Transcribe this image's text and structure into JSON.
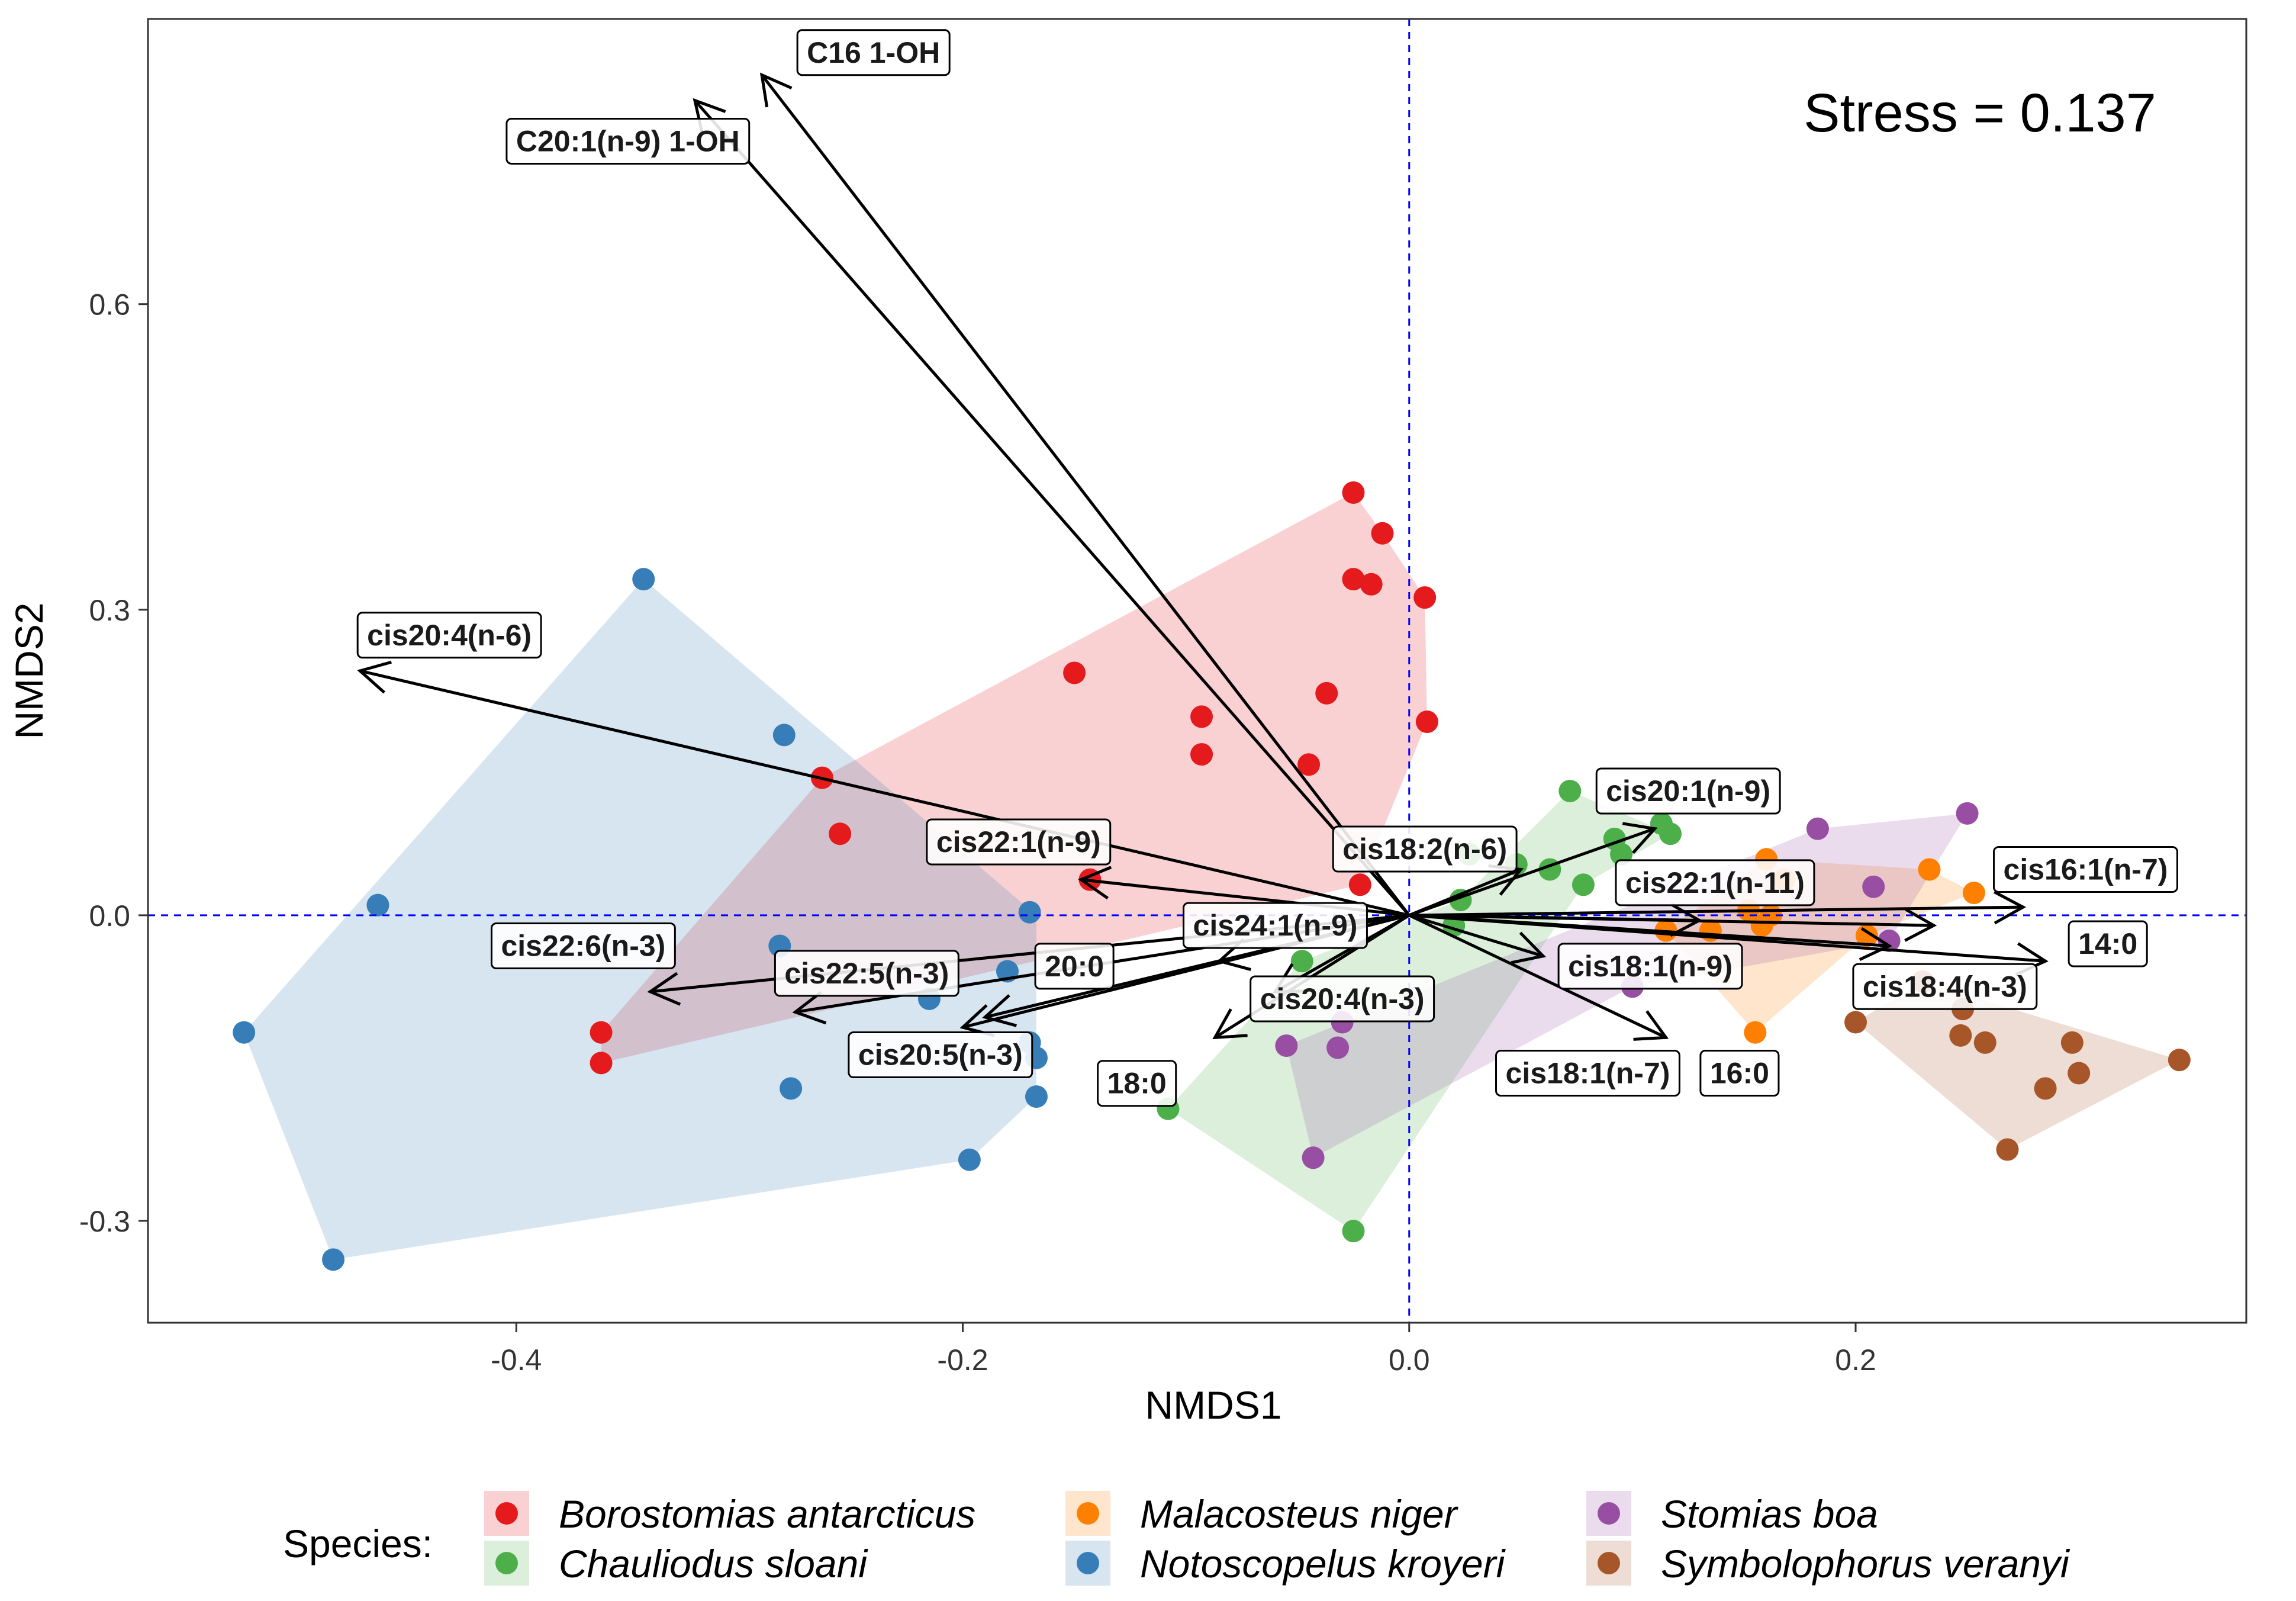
{
  "chart_data": {
    "type": "scatter",
    "subtype": "NMDS ordination with species hulls and fatty-acid vectors",
    "xlabel": "NMDS1",
    "ylabel": "NMDS2",
    "xlim": [
      -0.565,
      0.375
    ],
    "ylim": [
      -0.4,
      0.88
    ],
    "x_ticks": [
      -0.4,
      -0.2,
      0.0,
      0.2
    ],
    "x_tick_labels": [
      "-0.4",
      "-0.2",
      "0.0",
      "0.2"
    ],
    "y_ticks": [
      -0.3,
      0.0,
      0.3,
      0.6
    ],
    "y_tick_labels": [
      "-0.3",
      "0.0",
      "0.3",
      "0.6"
    ],
    "grid": false,
    "reference_lines": {
      "x": 0.0,
      "y": 0.0,
      "color": "#0000ff",
      "style": "dashed"
    },
    "stress_text": "Stress = 0.137",
    "legend": {
      "title": "Species:",
      "position": "bottom",
      "entries": [
        "Borostomias antarcticus",
        "Chauliodus sloani",
        "Malacosteus niger",
        "Notoscopelus kroyeri",
        "Stomias boa",
        "Symbolophorus veranyi"
      ]
    },
    "series": [
      {
        "name": "Borostomias antarcticus",
        "color": "#e41a1c",
        "points": [
          [
            -0.025,
            0.415
          ],
          [
            -0.012,
            0.375
          ],
          [
            -0.025,
            0.33
          ],
          [
            -0.017,
            0.325
          ],
          [
            0.007,
            0.312
          ],
          [
            -0.15,
            0.238
          ],
          [
            -0.037,
            0.218
          ],
          [
            0.008,
            0.19
          ],
          [
            -0.093,
            0.195
          ],
          [
            -0.093,
            0.158
          ],
          [
            -0.045,
            0.148
          ],
          [
            -0.263,
            0.135
          ],
          [
            -0.255,
            0.08
          ],
          [
            -0.022,
            0.03
          ],
          [
            -0.143,
            0.035
          ],
          [
            -0.362,
            -0.115
          ],
          [
            -0.362,
            -0.145
          ]
        ],
        "hull": [
          [
            -0.025,
            0.415
          ],
          [
            -0.012,
            0.375
          ],
          [
            0.007,
            0.312
          ],
          [
            0.008,
            0.19
          ],
          [
            -0.022,
            0.03
          ],
          [
            -0.362,
            -0.145
          ],
          [
            -0.362,
            -0.115
          ],
          [
            -0.263,
            0.135
          ]
        ]
      },
      {
        "name": "Chauliodus sloani",
        "color": "#4daf4a",
        "points": [
          [
            0.072,
            0.122
          ],
          [
            0.113,
            0.09
          ],
          [
            0.117,
            0.08
          ],
          [
            0.092,
            0.075
          ],
          [
            0.027,
            0.06
          ],
          [
            0.095,
            0.06
          ],
          [
            0.048,
            0.05
          ],
          [
            0.063,
            0.045
          ],
          [
            0.078,
            0.03
          ],
          [
            0.023,
            0.015
          ],
          [
            0.02,
            -0.01
          ],
          [
            -0.048,
            -0.045
          ],
          [
            -0.108,
            -0.19
          ],
          [
            -0.025,
            -0.31
          ]
        ],
        "hull": [
          [
            0.072,
            0.122
          ],
          [
            0.117,
            0.08
          ],
          [
            0.078,
            0.03
          ],
          [
            -0.025,
            -0.31
          ],
          [
            -0.108,
            -0.19
          ],
          [
            -0.048,
            -0.045
          ],
          [
            0.023,
            0.015
          ]
        ]
      },
      {
        "name": "Malacosteus niger",
        "color": "#ff7f00",
        "points": [
          [
            0.233,
            0.045
          ],
          [
            0.253,
            0.022
          ],
          [
            0.16,
            0.055
          ],
          [
            0.168,
            0.035
          ],
          [
            0.152,
            0.005
          ],
          [
            0.205,
            -0.02
          ],
          [
            0.162,
            0.0
          ],
          [
            0.158,
            -0.01
          ],
          [
            0.135,
            -0.015
          ],
          [
            0.115,
            -0.015
          ],
          [
            0.155,
            -0.115
          ]
        ],
        "hull": [
          [
            0.16,
            0.055
          ],
          [
            0.233,
            0.045
          ],
          [
            0.253,
            0.022
          ],
          [
            0.205,
            -0.02
          ],
          [
            0.155,
            -0.115
          ],
          [
            0.115,
            -0.015
          ]
        ]
      },
      {
        "name": "Notoscopelus kroyeri",
        "color": "#377eb8",
        "points": [
          [
            -0.343,
            0.33
          ],
          [
            -0.28,
            0.177
          ],
          [
            -0.462,
            0.01
          ],
          [
            -0.17,
            0.003
          ],
          [
            -0.282,
            -0.03
          ],
          [
            -0.18,
            -0.055
          ],
          [
            -0.215,
            -0.082
          ],
          [
            -0.522,
            -0.115
          ],
          [
            -0.17,
            -0.125
          ],
          [
            -0.167,
            -0.14
          ],
          [
            -0.277,
            -0.17
          ],
          [
            -0.167,
            -0.178
          ],
          [
            -0.197,
            -0.24
          ],
          [
            -0.482,
            -0.338
          ]
        ],
        "hull": [
          [
            -0.343,
            0.33
          ],
          [
            -0.167,
            0.0
          ],
          [
            -0.167,
            -0.178
          ],
          [
            -0.197,
            -0.24
          ],
          [
            -0.482,
            -0.338
          ],
          [
            -0.522,
            -0.115
          ]
        ]
      },
      {
        "name": "Stomias boa",
        "color": "#984ea3",
        "points": [
          [
            0.25,
            0.1
          ],
          [
            0.183,
            0.085
          ],
          [
            0.208,
            0.028
          ],
          [
            0.215,
            -0.025
          ],
          [
            0.1,
            -0.07
          ],
          [
            -0.03,
            -0.105
          ],
          [
            -0.055,
            -0.128
          ],
          [
            -0.032,
            -0.13
          ],
          [
            -0.043,
            -0.238
          ]
        ],
        "hull": [
          [
            0.25,
            0.1
          ],
          [
            0.215,
            -0.025
          ],
          [
            0.1,
            -0.07
          ],
          [
            -0.043,
            -0.238
          ],
          [
            -0.055,
            -0.128
          ],
          [
            0.183,
            0.085
          ]
        ]
      },
      {
        "name": "Symbolophorus veranyi",
        "color": "#a65628",
        "points": [
          [
            0.2,
            -0.105
          ],
          [
            0.248,
            -0.092
          ],
          [
            0.247,
            -0.118
          ],
          [
            0.258,
            -0.125
          ],
          [
            0.297,
            -0.125
          ],
          [
            0.345,
            -0.142
          ],
          [
            0.3,
            -0.155
          ],
          [
            0.285,
            -0.17
          ],
          [
            0.268,
            -0.23
          ],
          [
            0.23,
            -0.065
          ]
        ],
        "hull": [
          [
            0.23,
            -0.065
          ],
          [
            0.345,
            -0.142
          ],
          [
            0.268,
            -0.23
          ],
          [
            0.2,
            -0.105
          ]
        ]
      }
    ],
    "vectors": [
      {
        "label": "C16 1-OH",
        "end": [
          -0.29,
          0.825
        ],
        "label_at": [
          -0.24,
          0.847
        ]
      },
      {
        "label": "C20:1(n-9) 1-OH",
        "end": [
          -0.32,
          0.8
        ],
        "label_at": [
          -0.35,
          0.76
        ]
      },
      {
        "label": "cis20:4(n-6)",
        "end": [
          -0.47,
          0.24
        ],
        "label_at": [
          -0.43,
          0.275
        ]
      },
      {
        "label": "cis22:1(n-9)",
        "end": [
          -0.147,
          0.035
        ],
        "label_at": [
          -0.175,
          0.072
        ]
      },
      {
        "label": "cis22:6(n-3)",
        "end": [
          -0.34,
          -0.075
        ],
        "label_at": [
          -0.37,
          -0.03
        ]
      },
      {
        "label": "cis22:5(n-3)",
        "end": [
          -0.275,
          -0.095
        ],
        "label_at": [
          -0.243,
          -0.057
        ]
      },
      {
        "label": "20:0",
        "end": [
          -0.19,
          -0.1
        ],
        "label_at": [
          -0.15,
          -0.05
        ]
      },
      {
        "label": "cis20:5(n-3)",
        "end": [
          -0.2,
          -0.11
        ],
        "label_at": [
          -0.21,
          -0.137
        ]
      },
      {
        "label": "18:0",
        "end": [
          -0.087,
          -0.12
        ],
        "label_at": [
          -0.122,
          -0.165
        ]
      },
      {
        "label": "cis24:1(n-9)",
        "end": [
          -0.085,
          -0.045
        ],
        "label_at": [
          -0.06,
          -0.01
        ]
      },
      {
        "label": "cis20:4(n-3)",
        "end": [
          -0.06,
          -0.075
        ],
        "label_at": [
          -0.03,
          -0.082
        ]
      },
      {
        "label": "cis18:2(n-6)",
        "end": [
          0.05,
          0.045
        ],
        "label_at": [
          0.007,
          0.065
        ]
      },
      {
        "label": "cis20:1(n-9)",
        "end": [
          0.11,
          0.085
        ],
        "label_at": [
          0.125,
          0.122
        ]
      },
      {
        "label": "cis22:1(n-11)",
        "end": [
          0.13,
          -0.005
        ],
        "label_at": [
          0.137,
          0.032
        ]
      },
      {
        "label": "cis16:1(n-7)",
        "end": [
          0.275,
          0.008
        ],
        "label_at": [
          0.303,
          0.045
        ]
      },
      {
        "label": "14:0",
        "end": [
          0.285,
          -0.045
        ],
        "label_at": [
          0.313,
          -0.028
        ]
      },
      {
        "label": "cis18:1(n-9)",
        "end": [
          0.215,
          -0.03
        ],
        "label_at": [
          0.108,
          -0.05
        ]
      },
      {
        "label": "cis18:4(n-3)",
        "end": [
          0.235,
          -0.01
        ],
        "label_at": [
          0.24,
          -0.07
        ]
      },
      {
        "label": "cis18:1(n-7)",
        "end": [
          0.06,
          -0.04
        ],
        "label_at": [
          0.08,
          -0.155
        ]
      },
      {
        "label": "16:0",
        "end": [
          0.115,
          -0.12
        ],
        "label_at": [
          0.148,
          -0.155
        ]
      }
    ]
  }
}
